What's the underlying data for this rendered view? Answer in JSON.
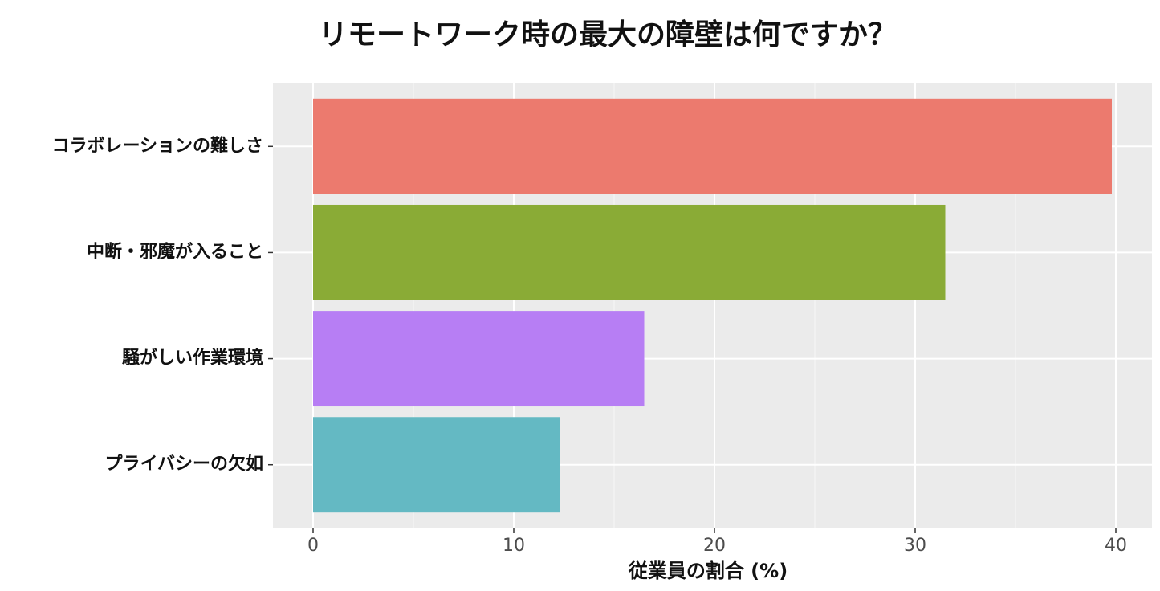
{
  "chart_data": {
    "type": "bar",
    "orientation": "horizontal",
    "title": "リモートワーク時の最大の障壁は何ですか？",
    "x_label": "従業員の割合 (%)",
    "categories": [
      "コラボレーションの難しさ",
      "中断・邪魔が入ること",
      "騒がしい作業環境",
      "プライバシーの欠如"
    ],
    "values": [
      39.8,
      31.5,
      16.5,
      12.3
    ],
    "colors": [
      "#ec7a6e",
      "#8aab36",
      "#b77ef4",
      "#64b9c3"
    ],
    "xlim": [
      -2,
      41.8
    ],
    "xticks": [
      0,
      10,
      20,
      30,
      40
    ],
    "xminorticks": [
      5,
      15,
      25,
      35
    ],
    "grid": true
  }
}
